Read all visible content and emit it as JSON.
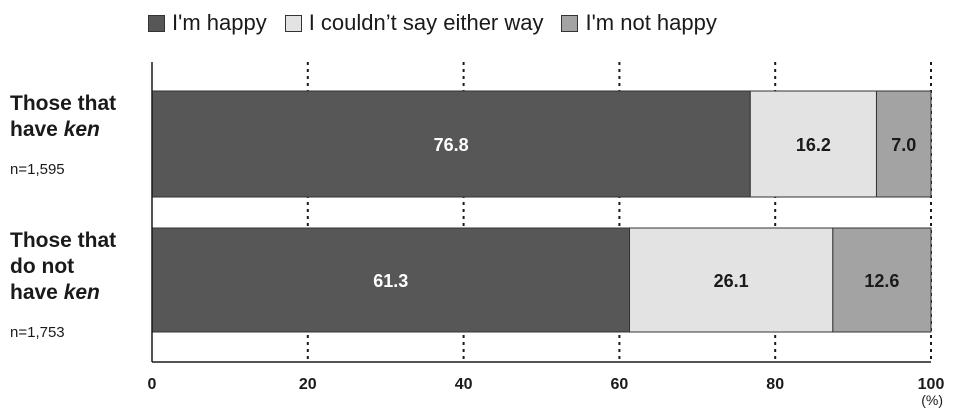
{
  "chart_data": {
    "type": "bar",
    "orientation": "horizontal",
    "stacked": true,
    "categories": [
      {
        "line1": "Those that",
        "line2a": "have ",
        "line2b": "ken",
        "line3a": "",
        "line3b": "",
        "n": "n=1,595"
      },
      {
        "line1": "Those that",
        "line2a": "do not",
        "line2b": "",
        "line3a": "have ",
        "line3b": "ken",
        "n": "n=1,753"
      }
    ],
    "series": [
      {
        "name": "I'm happy",
        "values": [
          76.8,
          61.3
        ],
        "labels": [
          "76.8",
          "61.3"
        ],
        "color": "#575757",
        "label_color": "#ffffff"
      },
      {
        "name": "I couldn’t say either way",
        "values": [
          16.2,
          26.1
        ],
        "labels": [
          "16.2",
          "26.1"
        ],
        "color": "#e3e3e3",
        "label_color": "#1a1a1a"
      },
      {
        "name": "I'm not happy",
        "values": [
          7.0,
          12.6
        ],
        "labels": [
          "7.0",
          "12.6"
        ],
        "color": "#a3a3a3",
        "label_color": "#1a1a1a"
      }
    ],
    "xlim": [
      0,
      100
    ],
    "xticks": [
      "0",
      "20",
      "40",
      "60",
      "80",
      "100"
    ],
    "x_unit": "(%)",
    "grid": "dotted vertical",
    "legend_position": "top"
  }
}
